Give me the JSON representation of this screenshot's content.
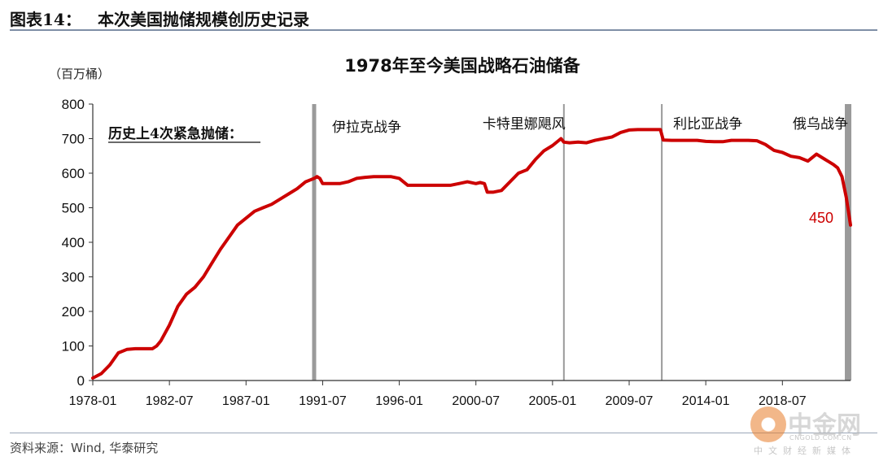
{
  "figure": {
    "label": "图表14：",
    "title": "本次美国抛储规模创历史记录",
    "source": "资料来源：Wind, 华泰研究"
  },
  "watermark": {
    "name": "中金网",
    "url": "CNGOLD.COM.CN",
    "tagline": "中文财经新媒体"
  },
  "chart_data": {
    "type": "line",
    "title": "1978年至今美国战略石油储备",
    "unit_label": "（百万桶）",
    "ylim": [
      0,
      800
    ],
    "yticks": [
      0,
      100,
      200,
      300,
      400,
      500,
      600,
      700,
      800
    ],
    "xlim": [
      "1978-01",
      "2022-07"
    ],
    "xticks": [
      "1978-01",
      "1982-07",
      "1987-01",
      "1991-07",
      "1996-01",
      "2000-07",
      "2005-01",
      "2009-07",
      "2014-01",
      "2018-07"
    ],
    "grid": false,
    "line_color": "#cc0000",
    "series": [
      {
        "points": [
          [
            "1978-01",
            7
          ],
          [
            "1978-07",
            20
          ],
          [
            "1979-01",
            45
          ],
          [
            "1979-07",
            80
          ],
          [
            "1980-01",
            90
          ],
          [
            "1980-07",
            92
          ],
          [
            "1981-01",
            92
          ],
          [
            "1981-07",
            92
          ],
          [
            "1981-10",
            100
          ],
          [
            "1982-01",
            115
          ],
          [
            "1982-07",
            160
          ],
          [
            "1983-01",
            215
          ],
          [
            "1983-07",
            250
          ],
          [
            "1984-01",
            270
          ],
          [
            "1984-07",
            300
          ],
          [
            "1985-01",
            340
          ],
          [
            "1985-07",
            380
          ],
          [
            "1986-01",
            415
          ],
          [
            "1986-07",
            450
          ],
          [
            "1987-01",
            470
          ],
          [
            "1987-07",
            490
          ],
          [
            "1988-01",
            500
          ],
          [
            "1988-07",
            510
          ],
          [
            "1989-01",
            525
          ],
          [
            "1989-07",
            540
          ],
          [
            "1990-01",
            555
          ],
          [
            "1990-07",
            575
          ],
          [
            "1991-01",
            585
          ],
          [
            "1991-03",
            590
          ],
          [
            "1991-05",
            585
          ],
          [
            "1991-07",
            570
          ],
          [
            "1992-01",
            570
          ],
          [
            "1992-07",
            570
          ],
          [
            "1993-01",
            575
          ],
          [
            "1993-07",
            585
          ],
          [
            "1994-01",
            588
          ],
          [
            "1994-07",
            590
          ],
          [
            "1995-01",
            590
          ],
          [
            "1995-07",
            590
          ],
          [
            "1996-01",
            585
          ],
          [
            "1996-07",
            565
          ],
          [
            "1997-01",
            565
          ],
          [
            "1997-07",
            565
          ],
          [
            "1998-01",
            565
          ],
          [
            "1998-07",
            565
          ],
          [
            "1999-01",
            565
          ],
          [
            "1999-07",
            570
          ],
          [
            "2000-01",
            575
          ],
          [
            "2000-07",
            570
          ],
          [
            "2000-10",
            573
          ],
          [
            "2001-01",
            570
          ],
          [
            "2001-03",
            545
          ],
          [
            "2001-07",
            545
          ],
          [
            "2002-01",
            550
          ],
          [
            "2002-07",
            575
          ],
          [
            "2003-01",
            600
          ],
          [
            "2003-07",
            610
          ],
          [
            "2004-01",
            640
          ],
          [
            "2004-07",
            665
          ],
          [
            "2005-01",
            680
          ],
          [
            "2005-07",
            700
          ],
          [
            "2005-09",
            690
          ],
          [
            "2006-01",
            688
          ],
          [
            "2006-07",
            690
          ],
          [
            "2007-01",
            688
          ],
          [
            "2007-07",
            695
          ],
          [
            "2008-01",
            700
          ],
          [
            "2008-07",
            705
          ],
          [
            "2009-01",
            718
          ],
          [
            "2009-07",
            725
          ],
          [
            "2010-01",
            726
          ],
          [
            "2010-07",
            726
          ],
          [
            "2011-01",
            726
          ],
          [
            "2011-05",
            726
          ],
          [
            "2011-07",
            696
          ],
          [
            "2012-01",
            695
          ],
          [
            "2012-07",
            695
          ],
          [
            "2013-01",
            695
          ],
          [
            "2013-07",
            695
          ],
          [
            "2014-01",
            692
          ],
          [
            "2014-07",
            691
          ],
          [
            "2015-01",
            691
          ],
          [
            "2015-07",
            695
          ],
          [
            "2016-01",
            695
          ],
          [
            "2016-07",
            695
          ],
          [
            "2017-01",
            694
          ],
          [
            "2017-07",
            683
          ],
          [
            "2018-01",
            666
          ],
          [
            "2018-07",
            660
          ],
          [
            "2019-01",
            649
          ],
          [
            "2019-07",
            645
          ],
          [
            "2020-01",
            635
          ],
          [
            "2020-07",
            655
          ],
          [
            "2021-01",
            640
          ],
          [
            "2021-07",
            625
          ],
          [
            "2021-10",
            615
          ],
          [
            "2022-01",
            590
          ],
          [
            "2022-04",
            530
          ],
          [
            "2022-07",
            450
          ]
        ]
      }
    ],
    "event_lines": [
      {
        "date": "1991-01",
        "emphasis": true
      },
      {
        "date": "2005-09",
        "emphasis": false
      },
      {
        "date": "2011-06",
        "emphasis": false
      },
      {
        "date": "2022-03",
        "emphasis": true,
        "band_end": "2022-07"
      }
    ],
    "annotations": [
      {
        "text": "历史上4次紧急抛储：",
        "underline": true,
        "anchor": "left-top"
      },
      {
        "text": "伊拉克战争",
        "date": "1991-01"
      },
      {
        "text": "卡特里娜飓风",
        "date": "2005-09"
      },
      {
        "text": "利比亚战争",
        "date": "2011-06"
      },
      {
        "text": "俄乌战争",
        "date": "2022-03"
      }
    ],
    "end_label": {
      "text": "450",
      "color": "#cc0000"
    }
  }
}
